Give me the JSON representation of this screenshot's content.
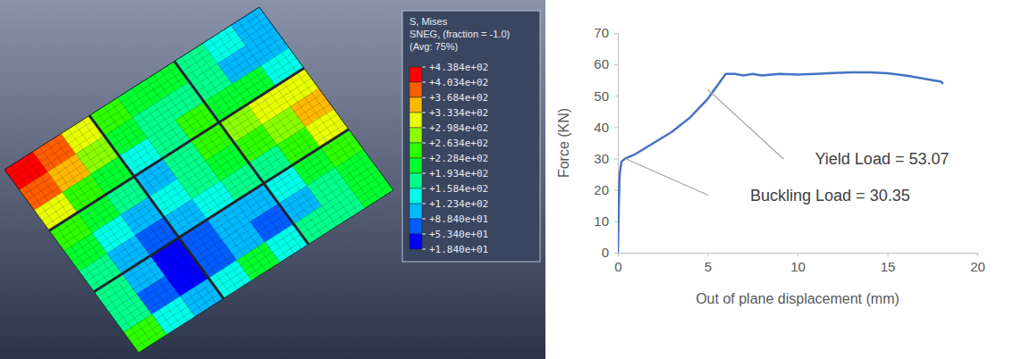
{
  "chart_data": [
    {
      "type": "contour",
      "colorbar": {
        "title": [
          "S, Mises",
          "SNEG, (fraction = -1.0)",
          "(Avg: 75%)"
        ],
        "range": [
          18.4,
          438.4
        ],
        "ticks": [
          {
            "value": 438.4,
            "label": "+4.384e+02"
          },
          {
            "value": 403.4,
            "label": "+4.034e+02"
          },
          {
            "value": 368.4,
            "label": "+3.684e+02"
          },
          {
            "value": 333.4,
            "label": "+3.334e+02"
          },
          {
            "value": 298.4,
            "label": "+2.984e+02"
          },
          {
            "value": 263.4,
            "label": "+2.634e+02"
          },
          {
            "value": 228.4,
            "label": "+2.284e+02"
          },
          {
            "value": 193.4,
            "label": "+1.934e+02"
          },
          {
            "value": 158.4,
            "label": "+1.584e+02"
          },
          {
            "value": 123.4,
            "label": "+1.234e+02"
          },
          {
            "value": 88.4,
            "label": "+8.840e+01"
          },
          {
            "value": 53.4,
            "label": "+5.340e+01"
          },
          {
            "value": 18.4,
            "label": "+1.840e+01"
          }
        ]
      },
      "cells": [
        [
          430,
          390,
          330,
          260,
          220,
          200,
          180,
          150,
          120
        ],
        [
          380,
          340,
          270,
          200,
          170,
          180,
          160,
          120,
          90
        ],
        [
          300,
          250,
          200,
          150,
          190,
          230,
          220,
          200,
          140
        ],
        [
          230,
          200,
          160,
          120,
          180,
          250,
          270,
          300,
          330
        ],
        [
          200,
          150,
          90,
          130,
          160,
          200,
          230,
          280,
          340
        ],
        [
          180,
          120,
          60,
          110,
          150,
          170,
          190,
          240,
          300
        ],
        [
          190,
          100,
          50,
          80,
          120,
          90,
          140,
          200,
          260
        ],
        [
          170,
          80,
          40,
          70,
          110,
          60,
          110,
          170,
          220
        ],
        [
          250,
          130,
          90,
          150,
          200,
          140,
          160,
          180,
          200
        ]
      ]
    },
    {
      "type": "line",
      "xlabel": "Out of plane displacement (mm)",
      "ylabel": "Force (KN)",
      "x": [
        0,
        0.05,
        0.1,
        0.2,
        0.4,
        1,
        2,
        3,
        4,
        5,
        5.5,
        6,
        6.5,
        7,
        7.5,
        8,
        9,
        10,
        11,
        12,
        13,
        14,
        15,
        16,
        17,
        17.5,
        18,
        18.1
      ],
      "values": [
        0,
        15,
        25,
        29,
        30,
        31.5,
        35,
        38.5,
        43,
        49,
        53,
        57,
        57,
        56.5,
        57,
        56.5,
        57,
        56.8,
        57,
        57.3,
        57.5,
        57.5,
        57.2,
        56.5,
        55.5,
        55,
        54.5,
        53.8
      ],
      "color": "#4472c4",
      "xlim": [
        0,
        20
      ],
      "xticks": [
        0,
        5,
        10,
        15,
        20
      ],
      "ylim": [
        0,
        70
      ],
      "yticks": [
        0,
        10,
        20,
        30,
        40,
        50,
        60,
        70
      ],
      "grid": false,
      "annotations": [
        {
          "text": "Yield Load = 53.07",
          "x": 5,
          "y": 52
        },
        {
          "text": "Buckling Load = 30.35",
          "x": 0.4,
          "y": 30
        }
      ]
    }
  ]
}
